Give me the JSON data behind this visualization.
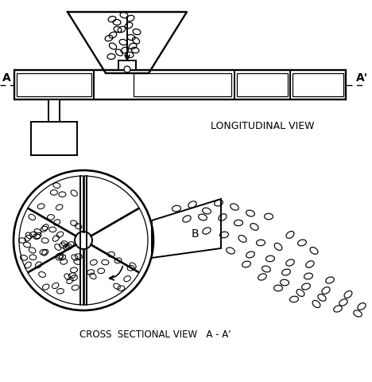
{
  "bg_color": "#ffffff",
  "line_color": "#000000",
  "title_long": "LONGITUDINAL VIEW",
  "title_cross": "CROSS  SECTIONAL VIEW   A - A'",
  "label_A": "A",
  "label_A_prime": "A'",
  "label_B": "B",
  "figsize": [
    4.68,
    4.8
  ],
  "dpi": 100
}
